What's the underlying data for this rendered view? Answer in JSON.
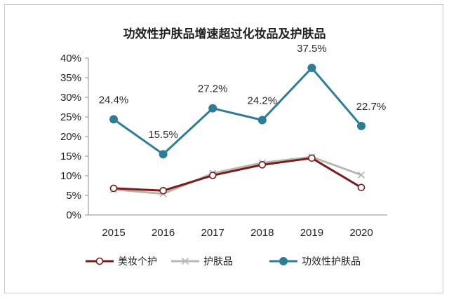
{
  "chart_data": {
    "type": "line",
    "title": "功效性护肤品增速超过化妆品及护肤品",
    "categories": [
      "2015",
      "2016",
      "2017",
      "2018",
      "2019",
      "2020"
    ],
    "ylim": [
      0,
      40
    ],
    "yticks": [
      "0%",
      "5%",
      "10%",
      "15%",
      "20%",
      "25%",
      "30%",
      "35%",
      "40%"
    ],
    "grid": false,
    "legend_position": "bottom",
    "series": [
      {
        "name": "美妆个护",
        "values": [
          6.8,
          6.2,
          10.1,
          12.8,
          14.5,
          7.0
        ],
        "color": "#7b1b1b",
        "marker": "open-circle"
      },
      {
        "name": "护肤品",
        "values": [
          6.5,
          5.4,
          10.6,
          13.3,
          14.8,
          10.2
        ],
        "color": "#b9b8b0",
        "marker": "x"
      },
      {
        "name": "功效性护肤品",
        "values": [
          24.4,
          15.5,
          27.2,
          24.2,
          37.5,
          22.7
        ],
        "color": "#2e7d96",
        "marker": "filled-circle",
        "labels": [
          "24.4%",
          "15.5%",
          "27.2%",
          "24.2%",
          "37.5%",
          "22.7%"
        ]
      }
    ]
  }
}
